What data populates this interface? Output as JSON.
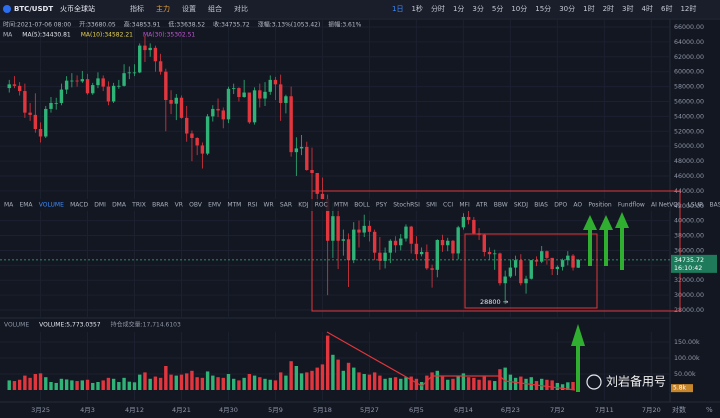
{
  "ui": {
    "symbol": "BTC/USDT",
    "exchange": "火币全球站",
    "tools": [
      "指标",
      "主力",
      "设置",
      "组合",
      "对比"
    ],
    "intervals": [
      "1日",
      "1秒",
      "分时",
      "1分",
      "3分",
      "5分",
      "10分",
      "15分",
      "30分",
      "1时",
      "2时",
      "3时",
      "4时",
      "6时",
      "12时"
    ],
    "info": [
      "时间:2021-07-06 08:00",
      "开:33680.05",
      "高:34853.91",
      "低:33638.52",
      "收:34735.72",
      "涨幅:3.13%(1053.42)",
      "振幅:3.61%"
    ],
    "ma": [
      "MA",
      "MA(5):34430.81",
      "MA(10):34582.21",
      "MA(30):35302.51"
    ],
    "indicator_tabs": [
      "MA",
      "EMA",
      "VOLUME",
      "MACD",
      "DMI",
      "DMA",
      "TRIX",
      "BRAR",
      "VR",
      "OBV",
      "EMV",
      "MTM",
      "RSI",
      "WR",
      "SAR",
      "KDJ",
      "ROC",
      "MTM",
      "BOLL",
      "PSY",
      "StochRSI",
      "SMI",
      "CCI",
      "MFI",
      "ATR",
      "BBW",
      "SKDJ",
      "BIAS",
      "DPO",
      "AO",
      "Position",
      "Fundflow",
      "AI NetVOL",
      "LSUR",
      "BASIS"
    ],
    "volume_header": [
      "VOLUME",
      "VOLUME:5,773.0357",
      "持仓成交量:17,714.6103"
    ],
    "price_tag_time": "16:10:42",
    "axis_options": [
      "对数",
      "%"
    ],
    "watermark": "刘岩备用号",
    "annotation": "28800 →"
  },
  "chart_data": {
    "type": "candlestick",
    "grid": true,
    "up_color": "#2fb377",
    "down_color": "#e2363f",
    "candles": [
      [
        57800,
        58900,
        57200,
        58300
      ],
      [
        58300,
        59400,
        57800,
        58100
      ],
      [
        58100,
        58600,
        56800,
        57400
      ],
      [
        57400,
        58400,
        53800,
        54500
      ],
      [
        54500,
        55800,
        53400,
        54200
      ],
      [
        54200,
        57100,
        51800,
        52300
      ],
      [
        52300,
        53200,
        50500,
        51300
      ],
      [
        51300,
        55400,
        51100,
        55000
      ],
      [
        55000,
        56600,
        54500,
        55800
      ],
      [
        55800,
        56500,
        54900,
        55800
      ],
      [
        55800,
        58400,
        55500,
        57600
      ],
      [
        57600,
        59400,
        57000,
        58800
      ],
      [
        58800,
        59800,
        57900,
        58800
      ],
      [
        58800,
        59500,
        58000,
        58700
      ],
      [
        58700,
        60100,
        58500,
        59000
      ],
      [
        59000,
        59700,
        56900,
        57100
      ],
      [
        57100,
        58500,
        56900,
        58200
      ],
      [
        58200,
        59900,
        57800,
        59100
      ],
      [
        59100,
        59500,
        57400,
        58000
      ],
      [
        58000,
        58700,
        55500,
        56000
      ],
      [
        56000,
        58500,
        55800,
        58100
      ],
      [
        58100,
        58900,
        57700,
        58100
      ],
      [
        58100,
        61000,
        58000,
        59800
      ],
      [
        59800,
        60700,
        59000,
        59900
      ],
      [
        59900,
        61000,
        59400,
        59900
      ],
      [
        59900,
        63800,
        59800,
        63500
      ],
      [
        63500,
        64800,
        61300,
        62900
      ],
      [
        62900,
        63800,
        62000,
        63200
      ],
      [
        63200,
        63500,
        60000,
        61400
      ],
      [
        61400,
        62400,
        59600,
        60000
      ],
      [
        60000,
        60400,
        52000,
        56200
      ],
      [
        56200,
        57500,
        54300,
        55700
      ],
      [
        55700,
        57000,
        53500,
        56500
      ],
      [
        56500,
        56800,
        53700,
        53800
      ],
      [
        53800,
        55400,
        50600,
        51700
      ],
      [
        51700,
        52100,
        48000,
        51100
      ],
      [
        51100,
        51200,
        48800,
        50100
      ],
      [
        50100,
        50500,
        47000,
        49000
      ],
      [
        49000,
        54300,
        48800,
        54000
      ],
      [
        54000,
        55500,
        53300,
        55000
      ],
      [
        55000,
        56400,
        53900,
        54800
      ],
      [
        54800,
        55200,
        52400,
        53600
      ],
      [
        53600,
        58000,
        53100,
        57700
      ],
      [
        57700,
        58400,
        57000,
        57800
      ],
      [
        57800,
        57900,
        56000,
        56600
      ],
      [
        56600,
        58900,
        56500,
        57200
      ],
      [
        57200,
        57200,
        53000,
        53200
      ],
      [
        53200,
        57900,
        52900,
        57500
      ],
      [
        57500,
        58400,
        55200,
        56400
      ],
      [
        56400,
        58600,
        55400,
        57300
      ],
      [
        57300,
        59500,
        56900,
        58900
      ],
      [
        58900,
        59300,
        56200,
        58300
      ],
      [
        58300,
        59600,
        53400,
        55800
      ],
      [
        55800,
        56900,
        54400,
        56700
      ],
      [
        56700,
        58000,
        48600,
        49200
      ],
      [
        49200,
        51200,
        46000,
        49700
      ],
      [
        49700,
        51500,
        48800,
        49900
      ],
      [
        49900,
        50600,
        46700,
        46800
      ],
      [
        46800,
        49800,
        43900,
        46400
      ],
      [
        46400,
        46400,
        42100,
        43600
      ],
      [
        43600,
        45800,
        42400,
        42900
      ],
      [
        42900,
        43500,
        30000,
        37300
      ],
      [
        37300,
        42400,
        35000,
        40600
      ],
      [
        40600,
        42200,
        33500,
        37300
      ],
      [
        37300,
        38800,
        35300,
        37500
      ],
      [
        37500,
        38300,
        31100,
        34700
      ],
      [
        34700,
        39800,
        34300,
        38800
      ],
      [
        38800,
        40000,
        36400,
        38400
      ],
      [
        38400,
        40800,
        37800,
        39300
      ],
      [
        39300,
        40000,
        37200,
        38500
      ],
      [
        38500,
        38800,
        34700,
        35700
      ],
      [
        35700,
        37800,
        33400,
        34600
      ],
      [
        34600,
        36400,
        33600,
        35700
      ],
      [
        35700,
        37500,
        34300,
        37300
      ],
      [
        37300,
        37900,
        35700,
        36700
      ],
      [
        36700,
        38200,
        36000,
        37600
      ],
      [
        37600,
        39500,
        37200,
        39200
      ],
      [
        39200,
        39300,
        35600,
        36900
      ],
      [
        36900,
        37900,
        34800,
        35500
      ],
      [
        35500,
        36400,
        35200,
        35800
      ],
      [
        35800,
        36800,
        33400,
        33600
      ],
      [
        33600,
        34100,
        31000,
        33400
      ],
      [
        33400,
        37500,
        32400,
        37400
      ],
      [
        37400,
        38100,
        35800,
        36700
      ],
      [
        36700,
        37700,
        35900,
        37300
      ],
      [
        37300,
        37400,
        34700,
        35600
      ],
      [
        35600,
        39300,
        34800,
        39100
      ],
      [
        39100,
        41000,
        38800,
        40500
      ],
      [
        40500,
        41300,
        39500,
        40100
      ],
      [
        40100,
        40500,
        38200,
        38300
      ],
      [
        38300,
        39000,
        37400,
        38100
      ],
      [
        38100,
        38200,
        35200,
        35800
      ],
      [
        35800,
        36400,
        34800,
        35500
      ],
      [
        35500,
        36100,
        33400,
        35600
      ],
      [
        35600,
        35700,
        31300,
        31600
      ],
      [
        31600,
        33300,
        28800,
        32500
      ],
      [
        32500,
        34800,
        32300,
        33700
      ],
      [
        33700,
        35300,
        32600,
        34700
      ],
      [
        34700,
        35500,
        31300,
        31600
      ],
      [
        31600,
        32600,
        30200,
        32200
      ],
      [
        32200,
        34700,
        32100,
        34700
      ],
      [
        34700,
        35200,
        33900,
        34500
      ],
      [
        34500,
        36600,
        34300,
        35900
      ],
      [
        35900,
        36000,
        34100,
        35000
      ],
      [
        35000,
        35000,
        32700,
        33500
      ],
      [
        33500,
        34000,
        32700,
        33800
      ],
      [
        33800,
        34900,
        33300,
        34700
      ],
      [
        34700,
        35900,
        34000,
        35300
      ],
      [
        35300,
        35500,
        33300,
        33700
      ],
      [
        33680.05,
        34853.91,
        33638.52,
        34735.72
      ]
    ],
    "volumes": [
      30000,
      28000,
      32000,
      45000,
      38000,
      50000,
      52000,
      40000,
      25000,
      22000,
      35000,
      33000,
      30000,
      28000,
      30000,
      32000,
      22000,
      25000,
      30000,
      38000,
      35000,
      25000,
      38000,
      26000,
      24000,
      48000,
      55000,
      35000,
      42000,
      38000,
      75000,
      48000,
      45000,
      48000,
      52000,
      60000,
      40000,
      38000,
      58000,
      45000,
      40000,
      38000,
      50000,
      35000,
      30000,
      38000,
      50000,
      45000,
      40000,
      35000,
      32000,
      30000,
      55000,
      45000,
      90000,
      75000,
      52000,
      55000,
      60000,
      70000,
      80000,
      170000,
      110000,
      95000,
      60000,
      85000,
      70000,
      55000,
      50000,
      48000,
      55000,
      45000,
      35000,
      38000,
      40000,
      35000,
      40000,
      42000,
      35000,
      25000,
      45000,
      55000,
      60000,
      42000,
      32000,
      35000,
      45000,
      52000,
      40000,
      38000,
      32000,
      42000,
      30000,
      28000,
      65000,
      70000,
      48000,
      38000,
      42000,
      35000,
      40000,
      28000,
      35000,
      32000,
      30000,
      22000,
      18000,
      24000,
      25000,
      5773.0357
    ],
    "volume_tag": "5.8k",
    "xlim": [
      -1,
      126
    ],
    "xticks": [
      {
        "value": 6,
        "label": "3月25"
      },
      {
        "value": 15,
        "label": "4月3"
      },
      {
        "value": 24,
        "label": "4月12"
      },
      {
        "value": 33,
        "label": "4月21"
      },
      {
        "value": 42,
        "label": "4月30"
      },
      {
        "value": 51,
        "label": "5月9"
      },
      {
        "value": 60,
        "label": "5月18"
      },
      {
        "value": 69,
        "label": "5月27"
      },
      {
        "value": 78,
        "label": "6月5"
      },
      {
        "value": 87,
        "label": "6月14"
      },
      {
        "value": 96,
        "label": "6月23"
      },
      {
        "value": 105,
        "label": "7月2"
      },
      {
        "value": 114,
        "label": "7月11"
      },
      {
        "value": 123,
        "label": "7月20"
      }
    ],
    "ylim": [
      26930,
      66940
    ],
    "yticks": [
      {
        "value": 66000,
        "label": "66000.00"
      },
      {
        "value": 64000,
        "label": "64000.00"
      },
      {
        "value": 62000,
        "label": "62000.00"
      },
      {
        "value": 60000,
        "label": "60000.00"
      },
      {
        "value": 58000,
        "label": "58000.00"
      },
      {
        "value": 56000,
        "label": "56000.00"
      },
      {
        "value": 54000,
        "label": "54000.00"
      },
      {
        "value": 52000,
        "label": "52000.00"
      },
      {
        "value": 50000,
        "label": "50000.00"
      },
      {
        "value": 48000,
        "label": "48000.00"
      },
      {
        "value": 46000,
        "label": "46000.00"
      },
      {
        "value": 44000,
        "label": "44000.00"
      },
      {
        "value": 42000,
        "label": "42000.00"
      },
      {
        "value": 40000,
        "label": "40000.00"
      },
      {
        "value": 38000,
        "label": "38000.00"
      },
      {
        "value": 36000,
        "label": "36000.00"
      },
      {
        "value": 34000,
        "label": "34000.00"
      },
      {
        "value": 32000,
        "label": "32000.00"
      },
      {
        "value": 30000,
        "label": "30000.00"
      },
      {
        "value": 28000,
        "label": "28000.00"
      }
    ],
    "vlim": [
      0,
      175000
    ],
    "vticks": [
      {
        "value": 150000,
        "label": "150.00k"
      },
      {
        "value": 100000,
        "label": "100.00k"
      },
      {
        "value": 50000,
        "label": "50.00k"
      }
    ]
  }
}
